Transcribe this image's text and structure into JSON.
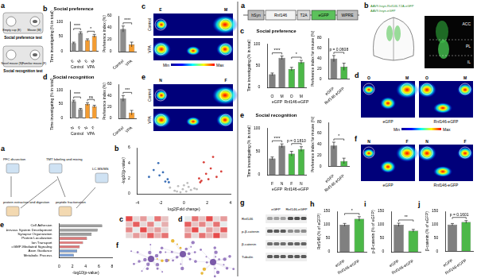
{
  "figure": {
    "left": {
      "top": {
        "a": {
          "letter": "a",
          "top_labels": [
            "Empty cup (E)",
            "Mouse (M)"
          ],
          "top_title": "Social preference test",
          "bottom_labels": [
            "Novel mouse (N)",
            "Familiar mouse (F)"
          ],
          "bottom_title": "Social recognition test"
        },
        "c": {
          "letter": "c",
          "rows": [
            "Control",
            "VPA"
          ],
          "cols": [
            "E",
            "M"
          ]
        },
        "e": {
          "letter": "e",
          "rows": [
            "Control",
            "VPA"
          ],
          "cols": [
            "N",
            "F"
          ]
        },
        "colorbar": [
          "Min",
          "Max"
        ]
      },
      "bottom": {
        "a": {
          "letter": "a",
          "steps": [
            "PFC dissection",
            "protein extraction and digestion",
            "TMT labeling and mixing",
            "peptide fractionation",
            "LC-MS/MS"
          ]
        },
        "c": {
          "letter": "c",
          "cells": [
            [
              0.9,
              0.2,
              0.5,
              0.1,
              0.7,
              0.3
            ],
            [
              0.3,
              0.8,
              0.2,
              0.6,
              0.1,
              0.4
            ],
            [
              0.6,
              0.1,
              0.9,
              0.3,
              0.5,
              0.2
            ],
            [
              0.2,
              0.5,
              0.3,
              0.8,
              0.4,
              0.7
            ]
          ]
        },
        "d": {
          "letter": "d",
          "cells": [
            [
              0.1,
              0.7,
              0.3,
              0.9,
              0.2,
              0.5
            ],
            [
              0.8,
              0.3,
              0.6,
              0.2,
              0.7,
              0.1
            ],
            [
              0.4,
              0.9,
              0.1,
              0.5,
              0.3,
              0.8
            ],
            [
              0.6,
              0.2,
              0.7,
              0.4,
              0.9,
              0.3
            ]
          ]
        },
        "f": {
          "letter": "f"
        }
      }
    },
    "right": {
      "a": {
        "letter": "a",
        "construct": [
          "hSyn",
          "Rnf146",
          "T2A",
          "eGFP",
          "WPRE"
        ]
      },
      "b": {
        "letter": "b",
        "injections": [
          "AAV9-hsyn-Rnf146-T2A-eGFP",
          "AAV9-hsyn-eGFP"
        ],
        "regions": [
          "ACC",
          "PL",
          "IL"
        ]
      },
      "d": {
        "letter": "d",
        "maps": [
          "eGFP",
          "Rnf146-eGFP"
        ],
        "cols": [
          "O",
          "M"
        ]
      },
      "f": {
        "letter": "f",
        "maps": [
          "eGFP",
          "Rnf146-eGFP"
        ],
        "cols": [
          "N",
          "F"
        ]
      },
      "colorbar": [
        "Min",
        "Max"
      ],
      "g": {
        "letter": "g",
        "lanes": [
          "eGFP",
          "Rnf146-eGFP"
        ],
        "bands": [
          "Rnf146",
          "p-β-catenin",
          "β-catenin",
          "Tubulin"
        ]
      }
    }
  },
  "chart_data": [
    {
      "panel": "b",
      "type": "bar",
      "title": "Social preference",
      "y_label": "Time investigating (% in total)",
      "categories": [
        "E",
        "M",
        "E",
        "M"
      ],
      "groups": [
        "Control",
        "VPA"
      ],
      "values": [
        28,
        62,
        38,
        52
      ],
      "errors": [
        3,
        4,
        4,
        5
      ],
      "colors": [
        "#8c8c8c",
        "#8c8c8c",
        "#f39c32",
        "#f39c32"
      ],
      "ylim": [
        0,
        100
      ],
      "yticks": [
        0,
        50,
        100
      ],
      "annotations": [
        {
          "text": "****",
          "from": 0,
          "to": 1
        },
        {
          "text": "*",
          "from": 2,
          "to": 3
        }
      ]
    },
    {
      "type": "bar",
      "y_label": "Preference index (%)",
      "categories": [
        "Control",
        "VPA"
      ],
      "values": [
        38,
        12
      ],
      "errors": [
        5,
        4
      ],
      "colors": [
        "#8c8c8c",
        "#f39c32"
      ],
      "ylim": [
        0,
        60
      ],
      "yticks": [
        0,
        20,
        40,
        60
      ],
      "annotations": [
        {
          "text": "****",
          "from": 0,
          "to": 1
        }
      ]
    },
    {
      "panel": "d",
      "type": "bar",
      "title": "Social recognition",
      "y_label": "Time investigating (% in total)",
      "categories": [
        "N",
        "F",
        "N",
        "F"
      ],
      "groups": [
        "Control",
        "VPA"
      ],
      "values": [
        60,
        32,
        50,
        42
      ],
      "errors": [
        4,
        3,
        5,
        4
      ],
      "colors": [
        "#8c8c8c",
        "#8c8c8c",
        "#f39c32",
        "#f39c32"
      ],
      "ylim": [
        0,
        100
      ],
      "yticks": [
        0,
        50,
        100
      ],
      "annotations": [
        {
          "text": "****",
          "from": 0,
          "to": 1
        },
        {
          "text": "ns",
          "from": 2,
          "to": 3
        }
      ]
    },
    {
      "type": "bar",
      "y_label": "Preference index (%)",
      "categories": [
        "Control",
        "VPA"
      ],
      "values": [
        35,
        10
      ],
      "errors": [
        5,
        4
      ],
      "colors": [
        "#8c8c8c",
        "#f39c32"
      ],
      "ylim": [
        0,
        60
      ],
      "yticks": [
        0,
        20,
        40,
        60
      ],
      "annotations": [
        {
          "text": "***",
          "from": 0,
          "to": 1
        }
      ]
    },
    {
      "panel": "b",
      "type": "scatter",
      "x_label": "log2(Fold change)",
      "y_label": "-log10(p-value)",
      "xlim": [
        -4,
        4
      ],
      "xticks": [
        -4,
        -2,
        0,
        2,
        4
      ],
      "ylim": [
        0,
        6
      ],
      "yticks": [
        0,
        2,
        4,
        6
      ],
      "series": [
        {
          "color": "#bdbdbd",
          "x": [
            -0.8,
            -0.5,
            -0.3,
            -0.1,
            0.2,
            0.4,
            0.6,
            0.9,
            -1.2,
            1.1,
            0.0,
            -0.6,
            0.3
          ],
          "values": [
            0.4,
            1.0,
            0.2,
            0.6,
            0.3,
            0.9,
            0.5,
            0.7,
            0.8,
            0.6,
            1.1,
            0.3,
            1.4
          ]
        },
        {
          "color": "#3b6fb6",
          "x": [
            -1.6,
            -2.1,
            -1.4,
            -2.6,
            -1.8,
            -1.3,
            -3.0,
            -2.2
          ],
          "values": [
            1.6,
            2.4,
            1.9,
            3.1,
            2.8,
            1.5,
            2.2,
            4.0
          ]
        },
        {
          "color": "#d9413b",
          "x": [
            1.5,
            1.9,
            2.3,
            1.4,
            2.8,
            1.7,
            2.1,
            3.2,
            1.3,
            2.5
          ],
          "values": [
            1.7,
            2.6,
            3.3,
            1.5,
            2.2,
            4.1,
            1.9,
            2.9,
            2.0,
            4.8
          ]
        }
      ]
    },
    {
      "panel": "e",
      "type": "bar",
      "orientation": "horizontal",
      "x_label": "-log10(p-value)",
      "categories": [
        "Cell Adhesion",
        "Nervous System Development",
        "Synapse Organization",
        "Protein Localization",
        "Ion Transport",
        "cGMP-Mediated Signaling",
        "Axon Guidance",
        "Metabolic Process"
      ],
      "values": [
        6.5,
        5.8,
        4.9,
        4.2,
        3.6,
        3.1,
        2.7,
        2.2
      ],
      "colors": [
        "#9e9e9e",
        "#9e9e9e",
        "#9e9e9e",
        "#e07a7a",
        "#e07a7a",
        "#e07a7a",
        "#7a9fd6",
        "#7a9fd6"
      ],
      "xlim": [
        0,
        8
      ],
      "xticks": [
        0,
        2,
        4,
        6,
        8
      ]
    },
    {
      "panel": "c",
      "type": "bar",
      "title": "Social preference",
      "y_label": "Time investigating (% in total)",
      "categories": [
        "O",
        "M",
        "O",
        "M"
      ],
      "groups": [
        "eGFP",
        "Rnf146-eGFP"
      ],
      "values": [
        30,
        68,
        42,
        58
      ],
      "errors": [
        3,
        4,
        4,
        4
      ],
      "colors": [
        "#808080",
        "#808080",
        "#4cb848",
        "#4cb848"
      ],
      "ylim": [
        0,
        100
      ],
      "yticks": [
        0,
        50,
        100
      ],
      "annotations": [
        {
          "text": "****",
          "from": 0,
          "to": 1
        },
        {
          "text": "*",
          "from": 2,
          "to": 3
        }
      ]
    },
    {
      "type": "bar",
      "y_label": "Preference index for mouse (%)",
      "categories": [
        "eGFP",
        "Rnf146-eGFP"
      ],
      "values": [
        40,
        24
      ],
      "errors": [
        6,
        7
      ],
      "colors": [
        "#808080",
        "#4cb848"
      ],
      "ylim": [
        0,
        80
      ],
      "yticks": [
        0,
        20,
        40,
        60,
        80
      ],
      "annotations": [
        {
          "text": "p = 0.0608",
          "from": 0,
          "to": 1
        }
      ]
    },
    {
      "panel": "e",
      "type": "bar",
      "title": "Social recognition",
      "y_label": "Time investigating (% in total)",
      "categories": [
        "F",
        "N",
        "F",
        "N"
      ],
      "groups": [
        "eGFP",
        "Rnf146-eGFP"
      ],
      "values": [
        35,
        62,
        45,
        55
      ],
      "errors": [
        3,
        4,
        5,
        5
      ],
      "colors": [
        "#808080",
        "#808080",
        "#4cb848",
        "#4cb848"
      ],
      "ylim": [
        0,
        100
      ],
      "yticks": [
        0,
        50,
        100
      ],
      "annotations": [
        {
          "text": "****",
          "from": 0,
          "to": 1
        },
        {
          "text": "p = 0.1810",
          "from": 2,
          "to": 3
        }
      ]
    },
    {
      "type": "bar",
      "y_label": "Preference index for mouse (%)",
      "categories": [
        "eGFP",
        "Rnf146-eGFP"
      ],
      "values": [
        38,
        10
      ],
      "errors": [
        6,
        5
      ],
      "colors": [
        "#808080",
        "#4cb848"
      ],
      "ylim": [
        0,
        80
      ],
      "yticks": [
        0,
        20,
        40,
        60,
        80
      ],
      "annotations": [
        {
          "text": "*",
          "from": 0,
          "to": 1
        }
      ]
    },
    {
      "panel": "h",
      "type": "bar",
      "y_label": "Rnf146 (% of eGFP)",
      "categories": [
        "eGFP",
        "Rnf146-eGFP"
      ],
      "values": [
        100,
        122
      ],
      "errors": [
        5,
        8
      ],
      "colors": [
        "#808080",
        "#4cb848"
      ],
      "ylim": [
        0,
        150
      ],
      "yticks": [
        0,
        50,
        100,
        150
      ],
      "annotations": [
        {
          "text": "*",
          "from": 0,
          "to": 1
        }
      ]
    },
    {
      "panel": "i",
      "type": "bar",
      "y_label": "p-β-catenin (% of eGFP)",
      "categories": [
        "eGFP",
        "Rnf146-eGFP"
      ],
      "values": [
        100,
        78
      ],
      "errors": [
        6,
        5
      ],
      "colors": [
        "#808080",
        "#4cb848"
      ],
      "ylim": [
        0,
        150
      ],
      "yticks": [
        0,
        50,
        100,
        150
      ],
      "annotations": [
        {
          "text": "**",
          "from": 0,
          "to": 1
        }
      ]
    },
    {
      "panel": "j",
      "type": "bar",
      "y_label": "β-catenin (% of eGFP)",
      "categories": [
        "eGFP",
        "Rnf146-eGFP"
      ],
      "values": [
        100,
        110
      ],
      "errors": [
        4,
        5
      ],
      "colors": [
        "#808080",
        "#4cb848"
      ],
      "ylim": [
        0,
        150
      ],
      "yticks": [
        0,
        50,
        100,
        150
      ],
      "annotations": [
        {
          "text": "p = 0.1601",
          "from": 0,
          "to": 1
        }
      ]
    }
  ]
}
